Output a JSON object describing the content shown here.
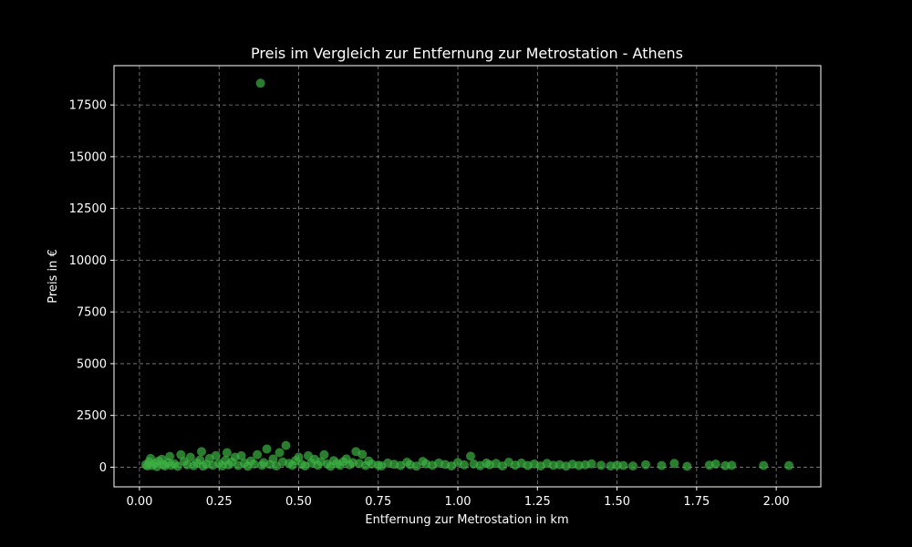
{
  "chart_data": {
    "type": "scatter",
    "title": "Preis im Vergleich zur Entfernung zur Metrostation - Athens",
    "xlabel": "Entfernung zur Metrostation in km",
    "ylabel": "Preis in €",
    "xlim": [
      -0.08,
      2.14
    ],
    "ylim": [
      -950,
      19400
    ],
    "xticks": [
      0.0,
      0.25,
      0.5,
      0.75,
      1.0,
      1.25,
      1.5,
      1.75,
      2.0
    ],
    "xtick_labels": [
      "0.00",
      "0.25",
      "0.50",
      "0.75",
      "1.00",
      "1.25",
      "1.50",
      "1.75",
      "2.00"
    ],
    "yticks": [
      0,
      2500,
      5000,
      7500,
      10000,
      12500,
      15000,
      17500
    ],
    "ytick_labels": [
      "0",
      "2500",
      "5000",
      "7500",
      "10000",
      "12500",
      "15000",
      "17500"
    ],
    "grid": true,
    "marker_color": "#3cb043",
    "background": "#000000",
    "points": [
      [
        0.02,
        120
      ],
      [
        0.025,
        60
      ],
      [
        0.03,
        250
      ],
      [
        0.035,
        420
      ],
      [
        0.04,
        80
      ],
      [
        0.05,
        180
      ],
      [
        0.055,
        30
      ],
      [
        0.06,
        300
      ],
      [
        0.07,
        380
      ],
      [
        0.075,
        120
      ],
      [
        0.08,
        60
      ],
      [
        0.09,
        220
      ],
      [
        0.095,
        520
      ],
      [
        0.1,
        90
      ],
      [
        0.11,
        160
      ],
      [
        0.12,
        40
      ],
      [
        0.13,
        600
      ],
      [
        0.14,
        280
      ],
      [
        0.15,
        110
      ],
      [
        0.16,
        480
      ],
      [
        0.17,
        70
      ],
      [
        0.18,
        200
      ],
      [
        0.19,
        350
      ],
      [
        0.195,
        750
      ],
      [
        0.2,
        50
      ],
      [
        0.21,
        140
      ],
      [
        0.22,
        420
      ],
      [
        0.23,
        90
      ],
      [
        0.24,
        560
      ],
      [
        0.25,
        180
      ],
      [
        0.26,
        60
      ],
      [
        0.27,
        330
      ],
      [
        0.275,
        700
      ],
      [
        0.28,
        120
      ],
      [
        0.29,
        250
      ],
      [
        0.3,
        480
      ],
      [
        0.31,
        80
      ],
      [
        0.32,
        550
      ],
      [
        0.33,
        200
      ],
      [
        0.34,
        40
      ],
      [
        0.35,
        300
      ],
      [
        0.36,
        150
      ],
      [
        0.37,
        600
      ],
      [
        0.38,
        18550
      ],
      [
        0.385,
        90
      ],
      [
        0.39,
        220
      ],
      [
        0.4,
        880
      ],
      [
        0.41,
        130
      ],
      [
        0.42,
        400
      ],
      [
        0.43,
        60
      ],
      [
        0.44,
        700
      ],
      [
        0.45,
        250
      ],
      [
        0.46,
        1050
      ],
      [
        0.47,
        180
      ],
      [
        0.48,
        90
      ],
      [
        0.49,
        320
      ],
      [
        0.5,
        480
      ],
      [
        0.51,
        140
      ],
      [
        0.52,
        60
      ],
      [
        0.53,
        550
      ],
      [
        0.54,
        200
      ],
      [
        0.55,
        380
      ],
      [
        0.56,
        100
      ],
      [
        0.57,
        260
      ],
      [
        0.58,
        600
      ],
      [
        0.59,
        150
      ],
      [
        0.6,
        40
      ],
      [
        0.61,
        320
      ],
      [
        0.62,
        180
      ],
      [
        0.63,
        90
      ],
      [
        0.64,
        260
      ],
      [
        0.65,
        400
      ],
      [
        0.66,
        120
      ],
      [
        0.67,
        220
      ],
      [
        0.68,
        750
      ],
      [
        0.69,
        180
      ],
      [
        0.7,
        620
      ],
      [
        0.71,
        80
      ],
      [
        0.72,
        300
      ],
      [
        0.73,
        150
      ],
      [
        0.75,
        100
      ],
      [
        0.76,
        60
      ],
      [
        0.78,
        200
      ],
      [
        0.8,
        140
      ],
      [
        0.82,
        80
      ],
      [
        0.84,
        240
      ],
      [
        0.85,
        120
      ],
      [
        0.87,
        50
      ],
      [
        0.89,
        280
      ],
      [
        0.9,
        160
      ],
      [
        0.92,
        90
      ],
      [
        0.94,
        200
      ],
      [
        0.96,
        130
      ],
      [
        0.98,
        60
      ],
      [
        1.0,
        220
      ],
      [
        1.02,
        110
      ],
      [
        1.04,
        530
      ],
      [
        1.05,
        150
      ],
      [
        1.07,
        70
      ],
      [
        1.09,
        200
      ],
      [
        1.1,
        120
      ],
      [
        1.12,
        180
      ],
      [
        1.14,
        60
      ],
      [
        1.16,
        240
      ],
      [
        1.18,
        100
      ],
      [
        1.2,
        200
      ],
      [
        1.22,
        80
      ],
      [
        1.24,
        150
      ],
      [
        1.26,
        60
      ],
      [
        1.28,
        180
      ],
      [
        1.3,
        90
      ],
      [
        1.32,
        120
      ],
      [
        1.34,
        50
      ],
      [
        1.36,
        140
      ],
      [
        1.38,
        80
      ],
      [
        1.4,
        110
      ],
      [
        1.42,
        160
      ],
      [
        1.45,
        90
      ],
      [
        1.48,
        60
      ],
      [
        1.5,
        100
      ],
      [
        1.52,
        80
      ],
      [
        1.55,
        60
      ],
      [
        1.59,
        120
      ],
      [
        1.64,
        80
      ],
      [
        1.68,
        180
      ],
      [
        1.72,
        40
      ],
      [
        1.79,
        100
      ],
      [
        1.81,
        150
      ],
      [
        1.84,
        70
      ],
      [
        1.86,
        90
      ],
      [
        1.96,
        80
      ],
      [
        2.04,
        80
      ]
    ]
  }
}
